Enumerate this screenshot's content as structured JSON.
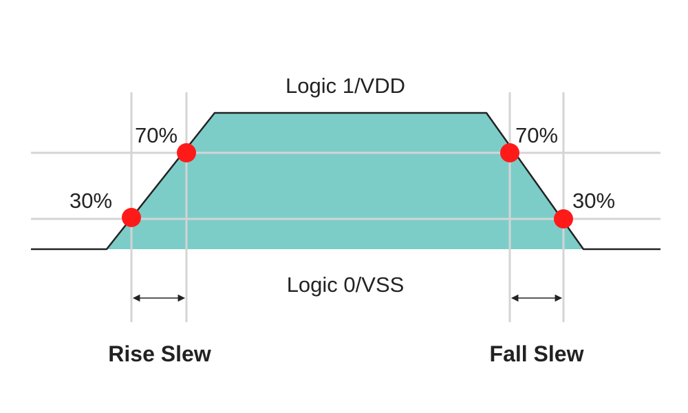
{
  "labels": {
    "logic_high": "Logic 1/VDD",
    "logic_low": "Logic 0/VSS",
    "rise_70": "70%",
    "rise_30": "30%",
    "fall_70": "70%",
    "fall_30": "30%",
    "rise_slew": "Rise Slew",
    "fall_slew": "Fall Slew"
  },
  "colors": {
    "pulse_fill": "#7ccdc8",
    "pulse_stroke": "#222222",
    "grid_line": "#d4d4d4",
    "marker": "#ff1a1a",
    "arrow": "#222222",
    "text": "#222222"
  }
}
